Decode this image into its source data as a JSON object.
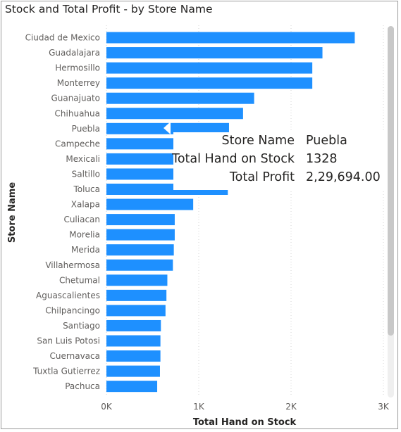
{
  "chart_data": {
    "type": "bar",
    "orientation": "horizontal",
    "title": "Stock and Total Profit - by Store Name",
    "xlabel": "Total Hand on Stock",
    "ylabel": "Store Name",
    "xlim": [
      0,
      3000
    ],
    "xticks": [
      "0K",
      "1K",
      "2K",
      "3K"
    ],
    "grid": "vertical dotted",
    "bar_color": "#1E90FF",
    "categories": [
      "Ciudad de Mexico",
      "Guadalajara",
      "Hermosillo",
      "Monterrey",
      "Guanajuato",
      "Chihuahua",
      "Puebla",
      "Campeche",
      "Mexicali",
      "Saltillo",
      "Toluca",
      "Xalapa",
      "Culiacan",
      "Morelia",
      "Merida",
      "Villahermosa",
      "Chetumal",
      "Aguascalientes",
      "Chilpancingo",
      "Santiago",
      "San Luis Potosi",
      "Cuernavaca",
      "Tuxtla Gutierrez",
      "Pachuca"
    ],
    "values": [
      2690,
      2340,
      2230,
      2230,
      1600,
      1480,
      1328,
      1330,
      1320,
      1320,
      1315,
      940,
      740,
      740,
      730,
      720,
      660,
      650,
      640,
      590,
      585,
      585,
      580,
      550
    ]
  },
  "tooltip": {
    "rows": [
      {
        "key": "Store Name",
        "value": "Puebla"
      },
      {
        "key": "Total Hand on Stock",
        "value": "1328"
      },
      {
        "key": "Total Profit",
        "value": "2,29,694.00"
      }
    ]
  }
}
